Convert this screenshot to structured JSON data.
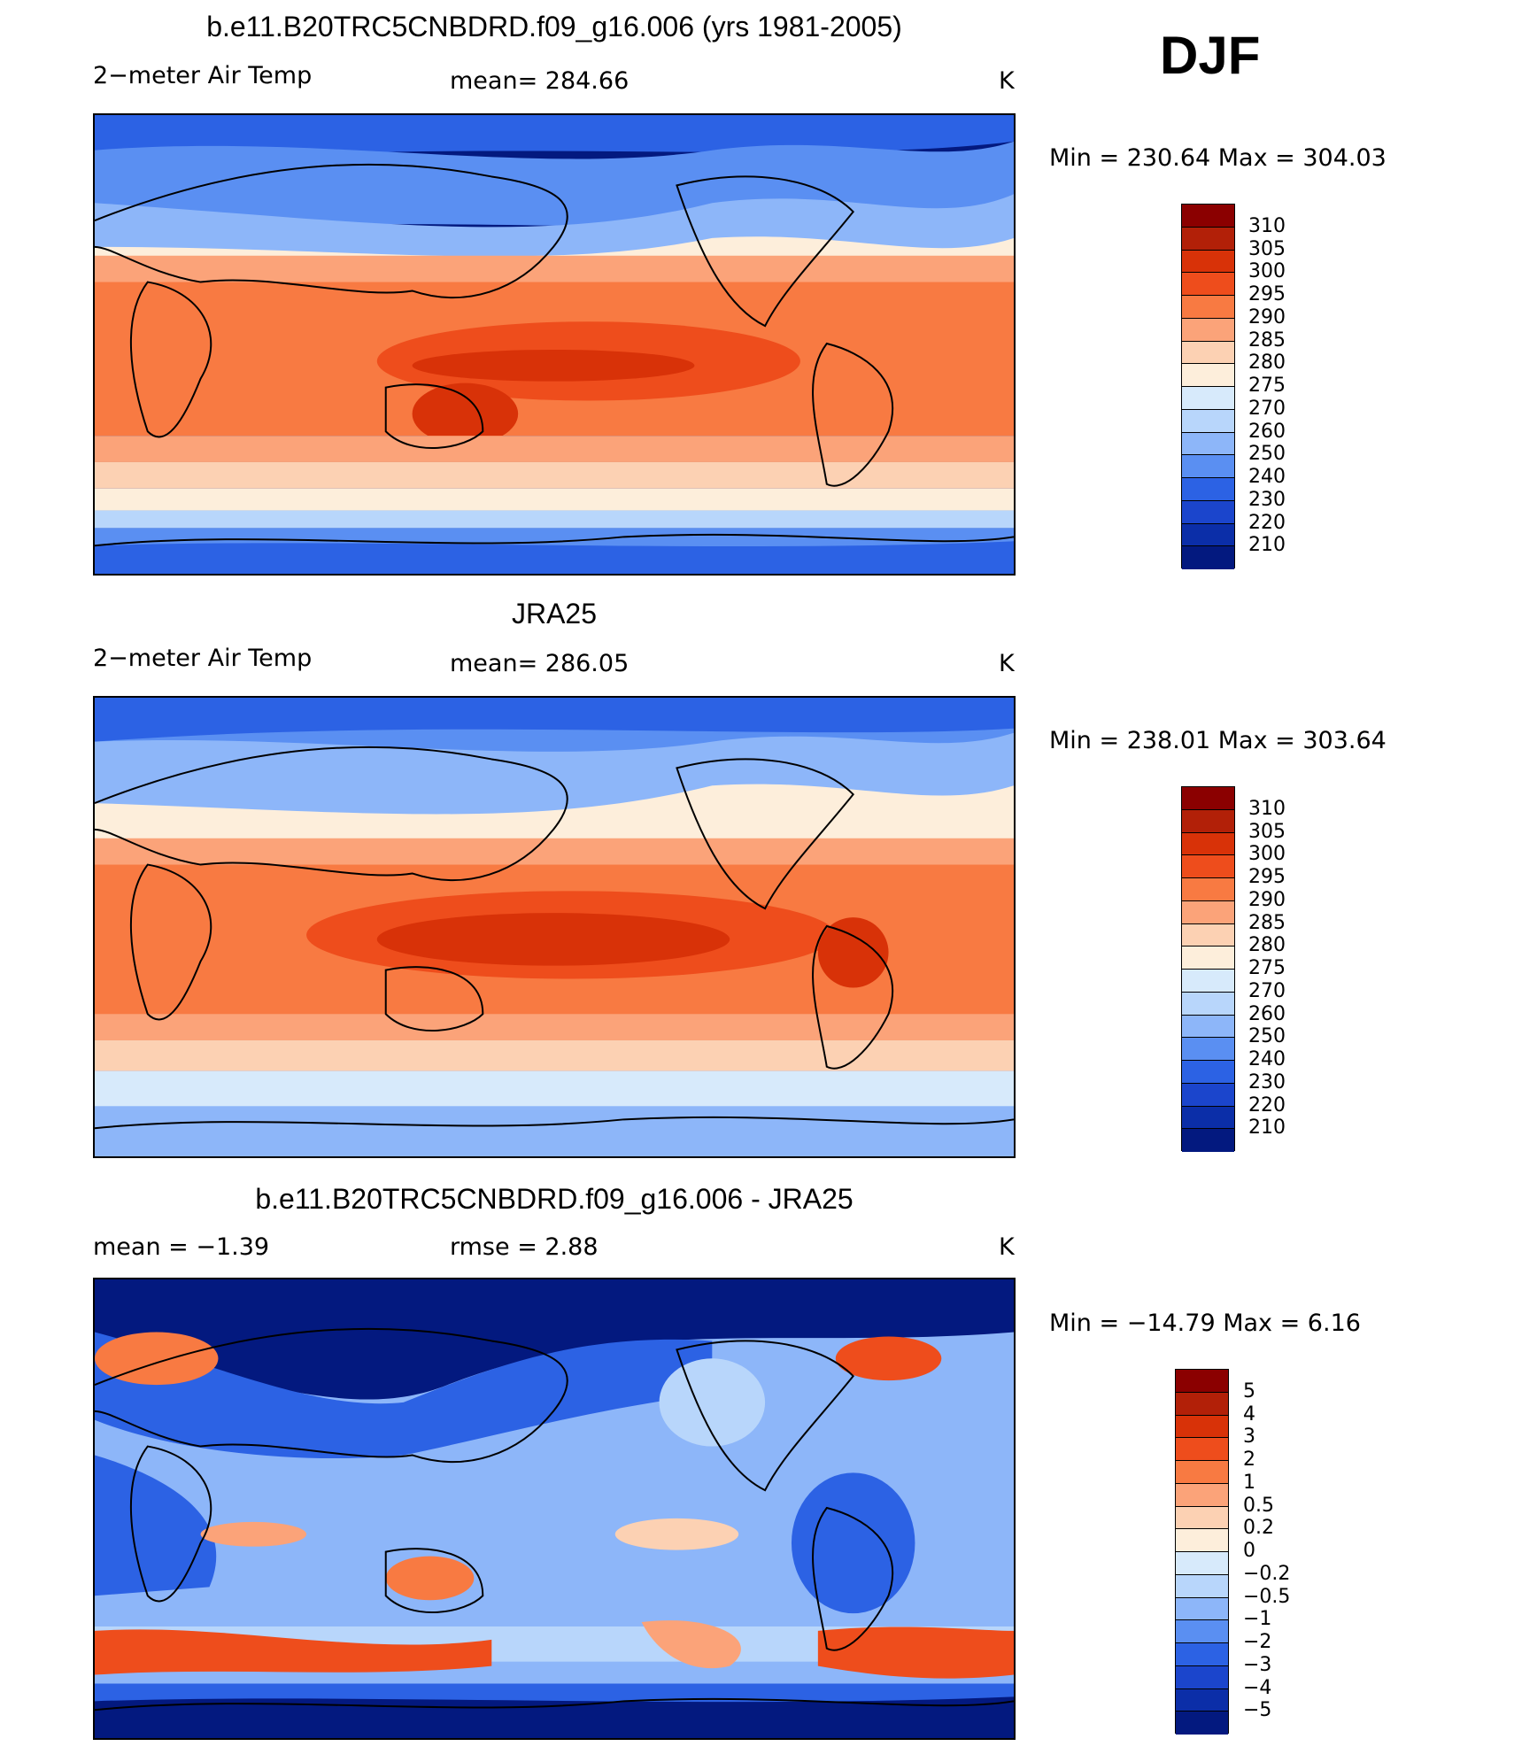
{
  "season": "DJF",
  "units": "K",
  "palette": {
    "temp": [
      "#8b0000",
      "#b22008",
      "#d83208",
      "#ee4d1c",
      "#f87a42",
      "#fba379",
      "#fcd1b3",
      "#fdeedb",
      "#d7eafb",
      "#b8d6fb",
      "#8db6f9",
      "#5a8ff2",
      "#2c62e4",
      "#1b45cc",
      "#0b2ea8",
      "#03197f"
    ],
    "diff": [
      "#8b0000",
      "#b22008",
      "#d83208",
      "#ee4d1c",
      "#f87a42",
      "#fba379",
      "#fcd1b3",
      "#fdeedb",
      "#d7eafb",
      "#b8d6fb",
      "#8db6f9",
      "#5a8ff2",
      "#2c62e4",
      "#1b45cc",
      "#0b2ea8",
      "#03197f"
    ]
  },
  "chart_data": [
    {
      "type": "heatmap",
      "title": "b.e11.B20TRC5CNBDRD.f09_g16.006 (yrs 1981-2005)",
      "variable": "2−meter Air Temp",
      "mean_label": "mean=  284.66",
      "mean": 284.66,
      "units": "K",
      "minmax_label": "Min  =  230.64  Max  =  304.03",
      "min": 230.64,
      "max": 304.03,
      "colorbar_levels": [
        "310",
        "305",
        "300",
        "295",
        "290",
        "285",
        "280",
        "275",
        "270",
        "260",
        "250",
        "240",
        "230",
        "220",
        "210"
      ]
    },
    {
      "type": "heatmap",
      "title": "JRA25",
      "variable": "2−meter Air Temp",
      "mean_label": "mean=  286.05",
      "mean": 286.05,
      "units": "K",
      "minmax_label": "Min  =  238.01  Max  =  303.64",
      "min": 238.01,
      "max": 303.64,
      "colorbar_levels": [
        "310",
        "305",
        "300",
        "295",
        "290",
        "285",
        "280",
        "275",
        "270",
        "260",
        "250",
        "240",
        "230",
        "220",
        "210"
      ]
    },
    {
      "type": "heatmap",
      "title": "b.e11.B20TRC5CNBDRD.f09_g16.006 - JRA25",
      "mean_label": "mean  =    −1.39",
      "mean": -1.39,
      "rmse_label": "rmse  =     2.88",
      "rmse": 2.88,
      "units": "K",
      "minmax_label": "Min  =  −14.79  Max  =     6.16",
      "min": -14.79,
      "max": 6.16,
      "colorbar_levels": [
        "5",
        "4",
        "3",
        "2",
        "1",
        "0.5",
        "0.2",
        "0",
        "−0.2",
        "−0.5",
        "−1",
        "−2",
        "−3",
        "−4",
        "−5"
      ]
    }
  ]
}
